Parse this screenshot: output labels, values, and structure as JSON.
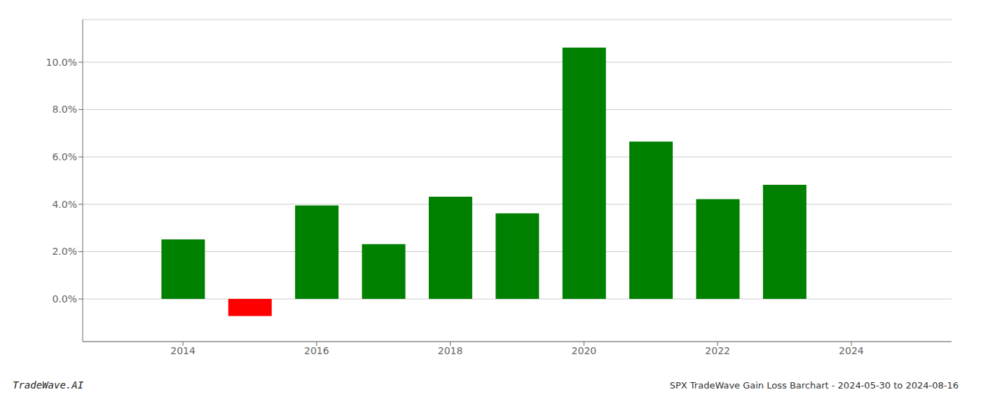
{
  "chart_data": {
    "type": "bar",
    "title": "SPX TradeWave Gain Loss Barchart - 2024-05-30 to 2024-08-16",
    "annotations": [
      "TradeWave.AI"
    ],
    "x": [
      2014,
      2015,
      2016,
      2017,
      2018,
      2019,
      2020,
      2021,
      2022,
      2023
    ],
    "values": [
      0.0252,
      -0.0072,
      0.0395,
      0.0232,
      0.0432,
      0.0362,
      0.1062,
      0.0665,
      0.0422,
      0.0482
    ],
    "colors": [
      "#008000",
      "#ff0000",
      "#008000",
      "#008000",
      "#008000",
      "#008000",
      "#008000",
      "#008000",
      "#008000",
      "#008000"
    ],
    "xlim": [
      2012.5,
      2025.5
    ],
    "xticks": [
      2014,
      2016,
      2018,
      2020,
      2022,
      2024
    ],
    "ylim": [
      -0.018,
      0.118
    ],
    "yticks": [
      {
        "value": 0.0,
        "label": "0.0%"
      },
      {
        "value": 0.02,
        "label": "2.0%"
      },
      {
        "value": 0.04,
        "label": "4.0%"
      },
      {
        "value": 0.06,
        "label": "6.0%"
      },
      {
        "value": 0.08,
        "label": "8.0%"
      },
      {
        "value": 0.1,
        "label": "10.0%"
      }
    ],
    "grid": true
  }
}
